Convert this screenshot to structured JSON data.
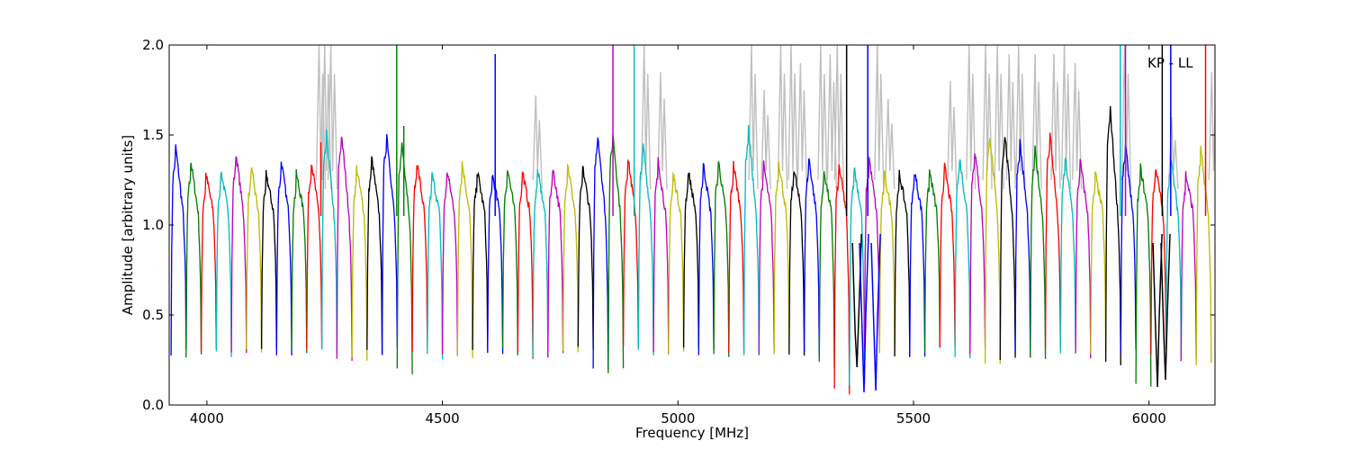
{
  "chart_data": {
    "type": "line",
    "title": "",
    "xlabel": "Frequency [MHz]",
    "ylabel": "Amplitude [arbitrary units]",
    "xlim": [
      3920,
      6140
    ],
    "ylim": [
      0.0,
      2.0
    ],
    "xticks": [
      4000,
      4500,
      5000,
      5500,
      6000
    ],
    "xtick_labels": [
      "4000",
      "4500",
      "5000",
      "5500",
      "6000"
    ],
    "yticks": [
      0.0,
      0.5,
      1.0,
      1.5,
      2.0
    ],
    "ytick_labels": [
      "0.0",
      "0.5",
      "1.0",
      "1.5",
      "2.0"
    ],
    "annotation": "KP - LL",
    "grid": false,
    "legend": "none",
    "band_start": 3924,
    "band_width": 32,
    "color_cycle": [
      "#0000ff",
      "#008000",
      "#ff0000",
      "#00bfbf",
      "#bf00bf",
      "#bfbf00",
      "#000000"
    ],
    "background_series_color": "#bfbfbf",
    "bands_peak": [
      1.37,
      1.28,
      1.2,
      1.22,
      1.33,
      1.24,
      1.2,
      1.28,
      1.2,
      1.28,
      1.45,
      1.45,
      1.24,
      1.3,
      1.45,
      1.4,
      1.28,
      1.2,
      1.22,
      1.27,
      1.22,
      1.2,
      1.24,
      1.22,
      1.22,
      1.24,
      1.26,
      1.24,
      1.45,
      1.45,
      1.3,
      1.38,
      1.28,
      1.2,
      1.22,
      1.26,
      1.28,
      1.26,
      1.48,
      1.26,
      1.28,
      1.24,
      1.3,
      1.22,
      1.25,
      1.24,
      1.3,
      1.2,
      1.2,
      1.22,
      1.22,
      1.25,
      1.3,
      1.35,
      1.45,
      1.45,
      1.4,
      1.35,
      1.45,
      1.3,
      1.28,
      1.2,
      1.6,
      1.38,
      1.24,
      1.25,
      1.3,
      1.2,
      1.35
    ],
    "bands_min": [
      0.3,
      0.26,
      0.3,
      0.28,
      0.28,
      0.3,
      0.3,
      0.3,
      0.3,
      0.3,
      0.3,
      0.26,
      0.24,
      0.3,
      0.3,
      0.18,
      0.3,
      0.26,
      0.28,
      0.28,
      0.3,
      0.28,
      0.3,
      0.28,
      0.28,
      0.28,
      0.3,
      0.3,
      0.2,
      0.2,
      0.3,
      0.3,
      0.28,
      0.28,
      0.3,
      0.3,
      0.26,
      0.28,
      0.3,
      0.28,
      0.3,
      0.28,
      0.28,
      0.22,
      0.08,
      0.1,
      0.3,
      0.3,
      0.28,
      0.28,
      0.3,
      0.3,
      0.28,
      0.3,
      0.24,
      0.26,
      0.28,
      0.24,
      0.3,
      0.3,
      0.28,
      0.3,
      0.22,
      0.3,
      0.1,
      0.3,
      0.3,
      0.26,
      0.22
    ],
    "spikes": [
      {
        "x": 4242,
        "y": 1.46,
        "color": "#ff0000"
      },
      {
        "x": 4403,
        "y": 2.0,
        "color": "#008000"
      },
      {
        "x": 4418,
        "y": 1.55,
        "color": "#008000"
      },
      {
        "x": 4612,
        "y": 1.95,
        "color": "#0000ff"
      },
      {
        "x": 4862,
        "y": 2.0,
        "color": "#bf00bf"
      },
      {
        "x": 4907,
        "y": 2.0,
        "color": "#00bfbf"
      },
      {
        "x": 5358,
        "y": 2.0,
        "color": "#000000"
      },
      {
        "x": 5403,
        "y": 2.0,
        "color": "#0000ff"
      },
      {
        "x": 5939,
        "y": 2.0,
        "color": "#00bfbf"
      },
      {
        "x": 5950,
        "y": 2.0,
        "color": "#bf00bf"
      },
      {
        "x": 6028,
        "y": 2.0,
        "color": "#000000"
      },
      {
        "x": 6046,
        "y": 2.0,
        "color": "#0000ff"
      },
      {
        "x": 6120,
        "y": 2.0,
        "color": "#ff0000"
      }
    ],
    "background_spikes": [
      {
        "x": 4240,
        "y": 2.0
      },
      {
        "x": 4252,
        "y": 2.0
      },
      {
        "x": 4265,
        "y": 2.0
      },
      {
        "x": 4700,
        "y": 1.72
      },
      {
        "x": 4930,
        "y": 2.0
      },
      {
        "x": 4965,
        "y": 1.85
      },
      {
        "x": 5158,
        "y": 2.0
      },
      {
        "x": 5185,
        "y": 1.75
      },
      {
        "x": 5220,
        "y": 2.0
      },
      {
        "x": 5242,
        "y": 2.0
      },
      {
        "x": 5262,
        "y": 1.9
      },
      {
        "x": 5305,
        "y": 2.0
      },
      {
        "x": 5325,
        "y": 1.95
      },
      {
        "x": 5340,
        "y": 2.0
      },
      {
        "x": 5425,
        "y": 2.0
      },
      {
        "x": 5448,
        "y": 1.7
      },
      {
        "x": 5580,
        "y": 1.8
      },
      {
        "x": 5620,
        "y": 2.0
      },
      {
        "x": 5655,
        "y": 2.0
      },
      {
        "x": 5680,
        "y": 2.0
      },
      {
        "x": 5705,
        "y": 1.95
      },
      {
        "x": 5725,
        "y": 2.0
      },
      {
        "x": 5760,
        "y": 1.95
      },
      {
        "x": 5800,
        "y": 1.95
      },
      {
        "x": 5822,
        "y": 2.0
      },
      {
        "x": 5845,
        "y": 1.9
      },
      {
        "x": 5950,
        "y": 2.0
      },
      {
        "x": 6050,
        "y": 1.6
      },
      {
        "x": 6135,
        "y": 1.85
      }
    ],
    "dips": [
      {
        "x": 5380,
        "y": 0.21,
        "color": "#000000"
      },
      {
        "x": 5395,
        "y": 0.07,
        "color": "#0000ff"
      },
      {
        "x": 5420,
        "y": 0.08,
        "color": "#0000ff"
      },
      {
        "x": 6018,
        "y": 0.1,
        "color": "#000000"
      },
      {
        "x": 6035,
        "y": 0.14,
        "color": "#000000"
      }
    ]
  }
}
